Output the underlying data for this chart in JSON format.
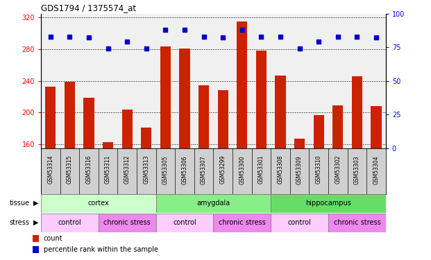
{
  "title": "GDS1794 / 1375574_at",
  "samples": [
    "GSM53314",
    "GSM53315",
    "GSM53316",
    "GSM53311",
    "GSM53312",
    "GSM53313",
    "GSM53305",
    "GSM53306",
    "GSM53307",
    "GSM53299",
    "GSM53300",
    "GSM53301",
    "GSM53308",
    "GSM53309",
    "GSM53310",
    "GSM53302",
    "GSM53303",
    "GSM53304"
  ],
  "counts": [
    233,
    239,
    219,
    163,
    204,
    181,
    283,
    281,
    234,
    228,
    315,
    278,
    247,
    167,
    197,
    209,
    246,
    208
  ],
  "percentiles": [
    83,
    83,
    82,
    74,
    79,
    74,
    88,
    88,
    83,
    82,
    88,
    83,
    83,
    74,
    79,
    83,
    83,
    82
  ],
  "tissue_groups": [
    {
      "label": "cortex",
      "start": 0,
      "end": 6,
      "color": "#ccffcc"
    },
    {
      "label": "amygdala",
      "start": 6,
      "end": 12,
      "color": "#88ee88"
    },
    {
      "label": "hippocampus",
      "start": 12,
      "end": 18,
      "color": "#66dd66"
    }
  ],
  "stress_groups": [
    {
      "label": "control",
      "start": 0,
      "end": 3,
      "color": "#ffccff"
    },
    {
      "label": "chronic stress",
      "start": 3,
      "end": 6,
      "color": "#ee88ee"
    },
    {
      "label": "control",
      "start": 6,
      "end": 9,
      "color": "#ffccff"
    },
    {
      "label": "chronic stress",
      "start": 9,
      "end": 12,
      "color": "#ee88ee"
    },
    {
      "label": "control",
      "start": 12,
      "end": 15,
      "color": "#ffccff"
    },
    {
      "label": "chronic stress",
      "start": 15,
      "end": 18,
      "color": "#ee88ee"
    }
  ],
  "ylim_left": [
    155,
    325
  ],
  "ylim_right": [
    0,
    100
  ],
  "yticks_left": [
    160,
    200,
    240,
    280,
    320
  ],
  "yticks_right": [
    0,
    25,
    50,
    75,
    100
  ],
  "bar_color": "#cc2200",
  "dot_color": "#0000cc",
  "plot_bg": "#f0f0f0",
  "label_bg": "#d0d0d0",
  "n_samples": 18
}
